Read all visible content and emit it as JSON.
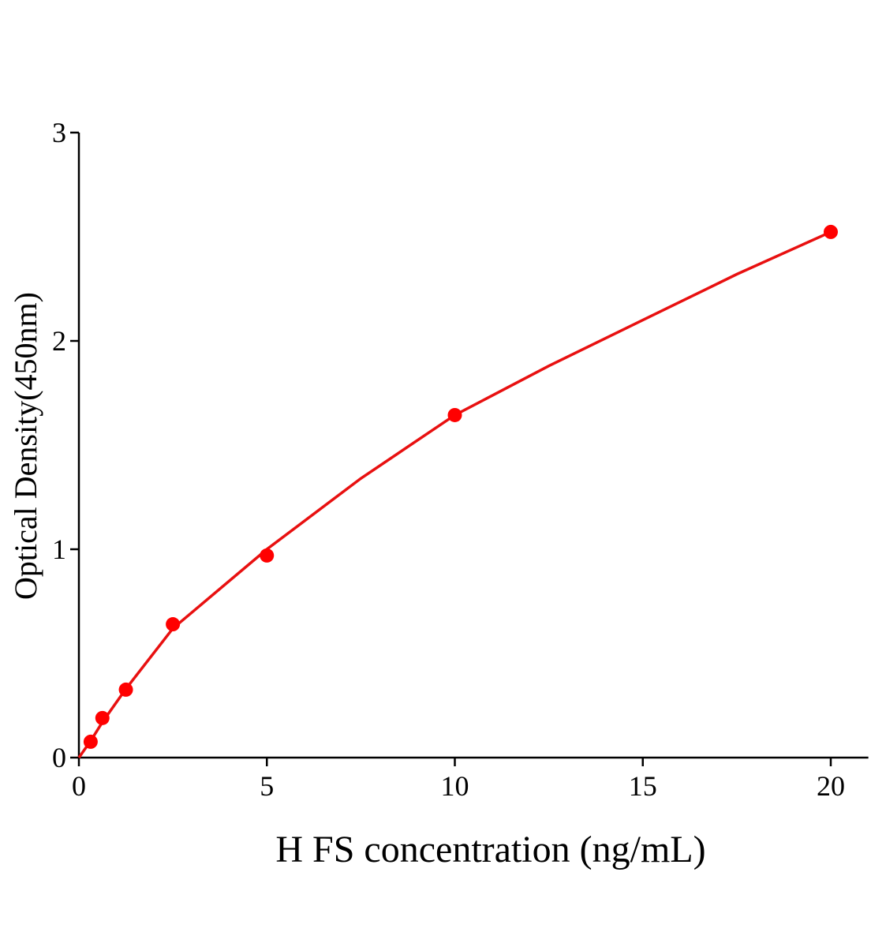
{
  "chart_data": {
    "type": "scatter-fit",
    "x_label": "H FS concentration (ng/mL)",
    "y_label": "Optical Density(450nm)",
    "points": {
      "color": "#ff0000",
      "x": [
        0.3125,
        0.625,
        1.25,
        2.5,
        5,
        10,
        20
      ],
      "values": [
        0.076,
        0.19,
        0.326,
        0.64,
        0.97,
        1.644,
        2.523
      ]
    },
    "curve": {
      "color": "#e81010",
      "x": [
        0,
        0.3125,
        0.625,
        1.25,
        2.5,
        5,
        7.5,
        10,
        12.5,
        15,
        17.5,
        20
      ],
      "values": [
        0,
        0.08,
        0.17,
        0.33,
        0.62,
        1.0,
        1.34,
        1.644,
        1.88,
        2.1,
        2.32,
        2.523
      ]
    },
    "xlim": [
      0,
      21
    ],
    "ylim": [
      0,
      3
    ],
    "xticks": [
      0,
      5,
      10,
      15,
      20
    ],
    "yticks": [
      0,
      1,
      2,
      3
    ]
  }
}
